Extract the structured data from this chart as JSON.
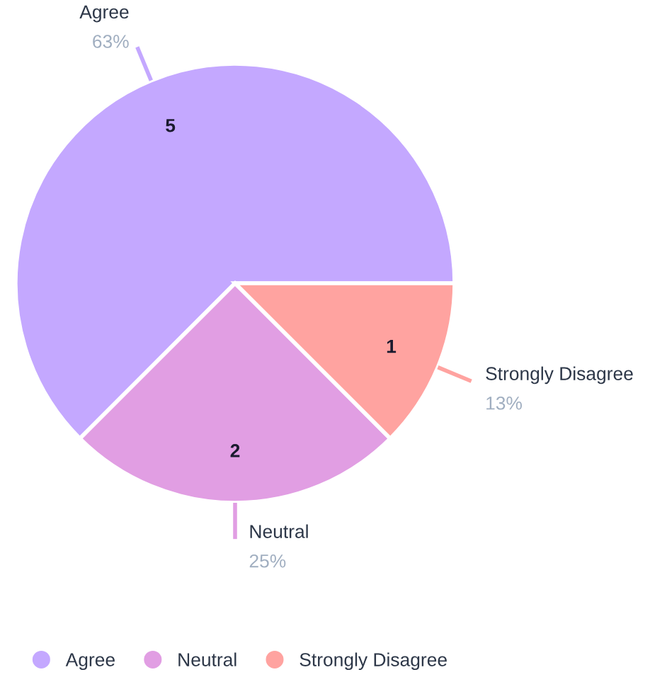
{
  "chart_data": {
    "type": "pie",
    "categories": [
      "Agree",
      "Neutral",
      "Strongly Disagree"
    ],
    "values": [
      5,
      2,
      1
    ],
    "colors": [
      "#c4a8ff",
      "#e19ee3",
      "#ffa3a0"
    ],
    "data_labels": true,
    "annotations": [
      {
        "text": "63%",
        "x": "Agree"
      },
      {
        "text": "25%",
        "x": "Neutral"
      },
      {
        "text": "13%",
        "x": "Strongly Disagree"
      }
    ],
    "legend": "bottom"
  }
}
